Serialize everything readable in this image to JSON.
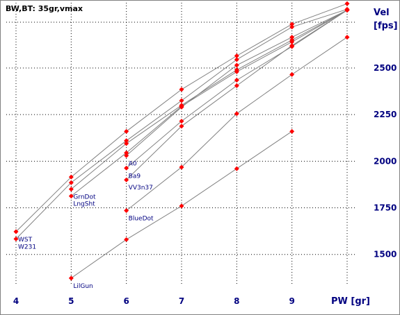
{
  "chart_data": {
    "type": "line",
    "title": "BW,BT:  35gr,vmax",
    "xlabel": "PW [gr]",
    "ylabel_line1": "Vel",
    "ylabel_line2": "[fps]",
    "xlim": [
      4,
      10
    ],
    "ylim": [
      1350,
      2820
    ],
    "x_ticks": [
      4,
      5,
      6,
      7,
      8,
      9
    ],
    "y_ticks": [
      1500,
      1750,
      2000,
      2250,
      2500
    ],
    "grid": true,
    "grid_style": "dotted",
    "y_axis_position": "right",
    "colors": {
      "line": "#808080",
      "marker": "#ff0000",
      "axis_text": "#000080",
      "grid": "#000000"
    },
    "series": [
      {
        "name": "WST",
        "x": [
          4,
          5,
          6,
          7,
          8,
          9,
          10
        ],
        "y": [
          1622,
          1915,
          2160,
          2385,
          2565,
          2735,
          2845
        ]
      },
      {
        "name": "W231",
        "x": [
          4,
          5,
          6,
          7,
          8,
          9,
          10
        ],
        "y": [
          1583,
          1885,
          2110,
          2325,
          2545,
          2720,
          2815
        ]
      },
      {
        "name": "GrnDot",
        "x": [
          5,
          6,
          7,
          8,
          9,
          10
        ],
        "y": [
          1850,
          2095,
          2300,
          2490,
          2650,
          2810
        ]
      },
      {
        "name": "LngSht",
        "x": [
          5,
          6,
          7,
          8,
          9,
          10
        ],
        "y": [
          1813,
          2045,
          2295,
          2480,
          2640,
          2810
        ]
      },
      {
        "name": "A0",
        "x": [
          6,
          7,
          8,
          9,
          10
        ],
        "y": [
          2030,
          2290,
          2515,
          2665,
          2810
        ]
      },
      {
        "name": "Ba9",
        "x": [
          6,
          7,
          8,
          9,
          10
        ],
        "y": [
          1963,
          2215,
          2435,
          2615,
          2810
        ]
      },
      {
        "name": "VV3n37",
        "x": [
          6,
          7,
          8,
          9,
          10
        ],
        "y": [
          1900,
          2188,
          2405,
          2620,
          2810
        ]
      },
      {
        "name": "BlueDot",
        "x": [
          6,
          7,
          8,
          9,
          10
        ],
        "y": [
          1735,
          1968,
          2255,
          2465,
          2665
        ]
      },
      {
        "name": "LilGun",
        "x": [
          5,
          6,
          7,
          8,
          9
        ],
        "y": [
          1373,
          1580,
          1760,
          1960,
          2160
        ]
      }
    ]
  }
}
